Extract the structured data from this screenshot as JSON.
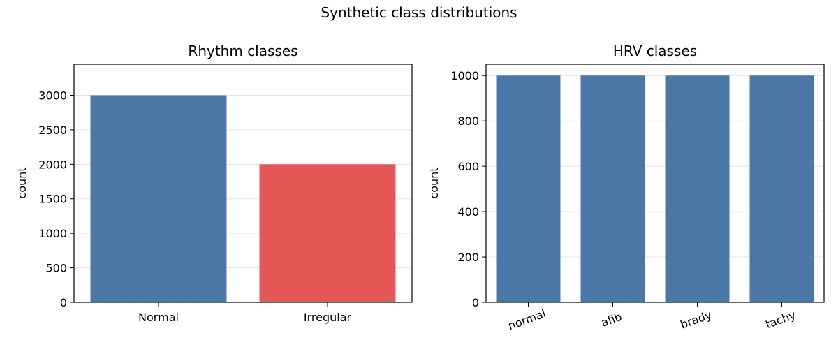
{
  "figure": {
    "title": "Synthetic class distributions"
  },
  "chart_data": [
    {
      "type": "bar",
      "title": "Rhythm classes",
      "xlabel": "",
      "ylabel": "count",
      "categories": [
        "Normal",
        "Irregular"
      ],
      "values": [
        3000,
        2000
      ],
      "colors": [
        "#4c78a8",
        "#e45756"
      ],
      "ylim": [
        0,
        3450
      ],
      "yticks": [
        0,
        500,
        1000,
        1500,
        2000,
        2500,
        3000
      ],
      "grid": true
    },
    {
      "type": "bar",
      "title": "HRV classes",
      "xlabel": "",
      "ylabel": "count",
      "categories": [
        "normal",
        "afib",
        "brady",
        "tachy"
      ],
      "values": [
        1000,
        1000,
        1000,
        1000
      ],
      "colors": [
        "#4c78a8",
        "#4c78a8",
        "#4c78a8",
        "#4c78a8"
      ],
      "ylim": [
        0,
        1050
      ],
      "yticks": [
        0,
        200,
        400,
        600,
        800,
        1000
      ],
      "grid": true,
      "xtick_rotation": 20
    }
  ]
}
